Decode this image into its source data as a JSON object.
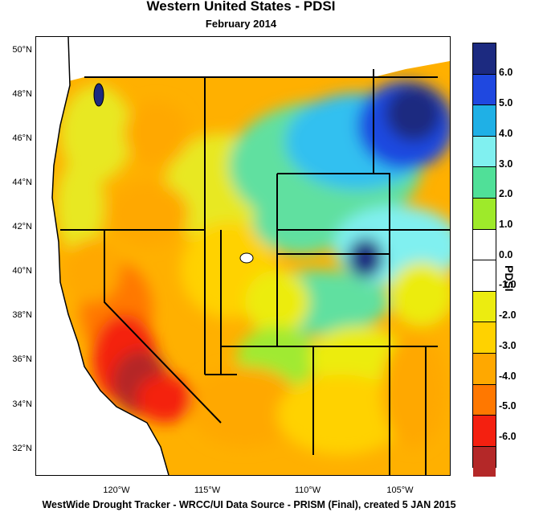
{
  "title": "Western United States - PDSI",
  "subtitle": "February 2014",
  "footer": "WestWide Drought Tracker - WRCC/UI  Data Source - PRISM (Final), created  5 JAN 2015",
  "lat_labels": [
    "50°N",
    "48°N",
    "46°N",
    "44°N",
    "42°N",
    "40°N",
    "38°N",
    "36°N",
    "34°N",
    "32°N"
  ],
  "lon_labels": [
    "120°W",
    "115°W",
    "110°W",
    "105°W"
  ],
  "colorbar": {
    "title": "PDSI",
    "labels": [
      "6.0",
      "5.0",
      "4.0",
      "3.0",
      "2.0",
      "1.0",
      "0.0",
      "-1.0",
      "-2.0",
      "-3.0",
      "-4.0",
      "-5.0",
      "-6.0"
    ],
    "colors": [
      "#1c2a80",
      "#1f48e0",
      "#1fb0e6",
      "#80f0f0",
      "#50e098",
      "#9eea2a",
      "#ffffff",
      "#ffffff",
      "#ecec10",
      "#ffd200",
      "#ffa800",
      "#ff7800",
      "#f42010",
      "#b42828"
    ]
  }
}
